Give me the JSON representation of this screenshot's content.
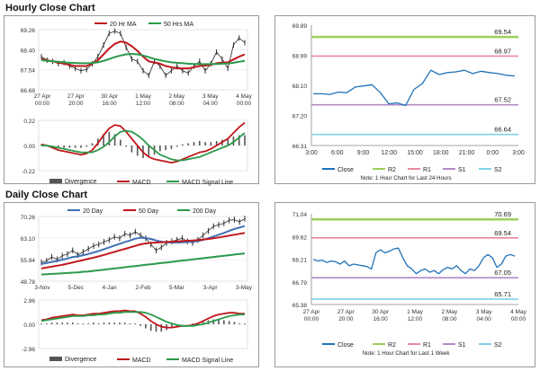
{
  "sections": {
    "hourly_title": "Hourly Close Chart",
    "daily_title": "Daily Close Chart"
  },
  "colors": {
    "price": "#2b2b2b",
    "ma20": "#c0171c",
    "ma50": "#2a9a4a",
    "day20": "#3f6fb3",
    "day200": "#2a9a4a",
    "macd": "#c0171c",
    "signal": "#2a9a4a",
    "divergence": "#555555",
    "close": "#1f72b8",
    "r2": "#9ccf5a",
    "r1": "#e8889c",
    "s1": "#b28ac6",
    "s2": "#7fd3e6"
  },
  "chart_data": [
    {
      "id": "hourly_price",
      "type": "line",
      "legend": [
        "20 Hr MA",
        "50 Hrs MA"
      ],
      "y_ticks": [
        "69.26",
        "68.40",
        "67.54",
        "66.68"
      ],
      "ylim": [
        66.68,
        69.26
      ],
      "x_ticks": [
        [
          "27 Apr",
          "00:00"
        ],
        [
          "27 Apr",
          "20:00"
        ],
        [
          "30 Apr",
          "16:00"
        ],
        [
          "1 May",
          "12:00"
        ],
        [
          "2 May",
          "08:00"
        ],
        [
          "3 May",
          "04:00"
        ],
        [
          "4 May",
          "00:00"
        ]
      ],
      "series": [
        {
          "name": "Price",
          "values": [
            68.1,
            67.95,
            67.9,
            67.8,
            67.85,
            67.7,
            67.6,
            67.5,
            67.55,
            67.8,
            68.1,
            68.6,
            69.1,
            69.2,
            69.1,
            68.5,
            68.0,
            67.9,
            67.5,
            67.3,
            67.9,
            67.7,
            67.3,
            67.5,
            67.7,
            67.5,
            67.4,
            67.7,
            67.9,
            67.5,
            67.8,
            68.3,
            68.0,
            67.6,
            68.6,
            68.9,
            68.7
          ]
        },
        {
          "name": "20 Hr MA",
          "values": [
            68.0,
            67.95,
            67.9,
            67.85,
            67.8,
            67.75,
            67.7,
            67.7,
            67.7,
            67.8,
            67.95,
            68.2,
            68.45,
            68.65,
            68.75,
            68.7,
            68.55,
            68.35,
            68.1,
            67.9,
            67.85,
            67.8,
            67.7,
            67.65,
            67.6,
            67.6,
            67.6,
            67.65,
            67.7,
            67.72,
            67.75,
            67.82,
            67.85,
            67.86,
            67.98,
            68.1,
            68.2
          ]
        },
        {
          "name": "50 Hrs MA",
          "values": [
            67.95,
            67.92,
            67.9,
            67.88,
            67.86,
            67.84,
            67.83,
            67.82,
            67.82,
            67.83,
            67.86,
            67.92,
            68.0,
            68.08,
            68.15,
            68.2,
            68.22,
            68.2,
            68.15,
            68.08,
            68.0,
            67.95,
            67.9,
            67.86,
            67.84,
            67.82,
            67.8,
            67.79,
            67.78,
            67.78,
            67.78,
            67.79,
            67.8,
            67.81,
            67.84,
            67.88,
            67.92
          ]
        }
      ]
    },
    {
      "id": "hourly_macd",
      "type": "line",
      "legend": [
        "Divergence",
        "MACD",
        "MACD Signal Line"
      ],
      "y_ticks": [
        "0.22",
        "0.00",
        "-0.22"
      ],
      "ylim": [
        -0.22,
        0.22
      ],
      "series": [
        {
          "name": "MACD",
          "values": [
            0.01,
            0.0,
            -0.02,
            -0.04,
            -0.05,
            -0.06,
            -0.07,
            -0.08,
            -0.07,
            -0.04,
            0.02,
            0.09,
            0.15,
            0.18,
            0.17,
            0.12,
            0.06,
            0.0,
            -0.06,
            -0.1,
            -0.12,
            -0.13,
            -0.14,
            -0.15,
            -0.14,
            -0.12,
            -0.1,
            -0.08,
            -0.06,
            -0.05,
            -0.03,
            0.0,
            0.03,
            0.06,
            0.11,
            0.16,
            0.2
          ]
        },
        {
          "name": "MACD Signal Line",
          "values": [
            0.0,
            0.0,
            -0.01,
            -0.02,
            -0.03,
            -0.04,
            -0.05,
            -0.06,
            -0.06,
            -0.06,
            -0.04,
            -0.01,
            0.03,
            0.08,
            0.12,
            0.13,
            0.12,
            0.09,
            0.05,
            0.0,
            -0.04,
            -0.08,
            -0.1,
            -0.12,
            -0.13,
            -0.13,
            -0.12,
            -0.11,
            -0.1,
            -0.08,
            -0.06,
            -0.04,
            -0.02,
            0.0,
            0.03,
            0.07,
            0.11
          ]
        }
      ]
    },
    {
      "id": "hourly_close",
      "type": "line",
      "legend": [
        "Close",
        "R2",
        "R1",
        "S1",
        "S2"
      ],
      "y_ticks": [
        "69.89",
        "68.99",
        "68.10",
        "67.20",
        "66.31"
      ],
      "ylim": [
        66.31,
        69.89
      ],
      "x_ticks": [
        "3:00",
        "6:00",
        "9:00",
        "12:00",
        "15:00",
        "18:00",
        "21:00",
        "0:00",
        "3:00"
      ],
      "note": "Note: 1 Hour Chart for Last 24 Hours",
      "levels": [
        {
          "name": "R2",
          "value": 69.54,
          "label": "69.54"
        },
        {
          "name": "R1",
          "value": 68.97,
          "label": "68.97"
        },
        {
          "name": "S1",
          "value": 67.52,
          "label": "67.52"
        },
        {
          "name": "S2",
          "value": 66.64,
          "label": "66.64"
        }
      ],
      "x": [
        0,
        1,
        2,
        3,
        4,
        5,
        6,
        7,
        8,
        9,
        10,
        11,
        12,
        13,
        14,
        15,
        16,
        17,
        18,
        19,
        20,
        21,
        22,
        23,
        24
      ],
      "values": [
        67.85,
        67.85,
        67.83,
        67.9,
        67.88,
        68.05,
        68.08,
        68.12,
        67.88,
        67.55,
        67.58,
        67.5,
        67.98,
        68.15,
        68.55,
        68.42,
        68.48,
        68.5,
        68.55,
        68.45,
        68.52,
        68.48,
        68.45,
        68.4,
        68.38
      ]
    },
    {
      "id": "daily_price",
      "type": "line",
      "legend": [
        "20 Day",
        "50 Day",
        "200 Day"
      ],
      "y_ticks": [
        "70.26",
        "63.10",
        "55.94",
        "48.78"
      ],
      "ylim": [
        48.78,
        70.26
      ],
      "x_ticks": [
        "3-Nov",
        "5-Dec",
        "4-Jan",
        "2-Feb",
        "5-Mar",
        "3-Apr",
        "3-May"
      ],
      "series": [
        {
          "name": "Price",
          "values": [
            55.0,
            55.5,
            56.8,
            56.0,
            57.2,
            57.8,
            59.0,
            57.5,
            58.5,
            59.5,
            60.5,
            61.0,
            61.8,
            62.5,
            63.5,
            63.0,
            64.5,
            64.0,
            65.2,
            64.0,
            63.0,
            61.0,
            59.0,
            60.0,
            61.5,
            62.0,
            62.5,
            63.0,
            62.0,
            61.5,
            62.5,
            64.0,
            65.5,
            67.0,
            67.5,
            68.0,
            69.0,
            69.2,
            68.5,
            69.5
          ]
        },
        {
          "name": "20 Day",
          "values": [
            54.5,
            54.8,
            55.2,
            55.5,
            55.9,
            56.3,
            56.8,
            57.0,
            57.4,
            57.8,
            58.3,
            58.8,
            59.4,
            60.0,
            60.6,
            61.2,
            61.8,
            62.3,
            62.9,
            63.2,
            63.1,
            62.8,
            62.3,
            61.9,
            61.7,
            61.6,
            61.6,
            61.7,
            61.8,
            61.9,
            62.1,
            62.5,
            63.0,
            63.6,
            64.2,
            64.8,
            65.5,
            66.1,
            66.6,
            67.1
          ]
        },
        {
          "name": "50 Day",
          "values": [
            53.0,
            53.3,
            53.6,
            53.9,
            54.2,
            54.6,
            55.0,
            55.4,
            55.8,
            56.2,
            56.6,
            57.0,
            57.5,
            58.0,
            58.5,
            59.0,
            59.5,
            60.0,
            60.5,
            61.0,
            61.3,
            61.5,
            61.6,
            61.7,
            61.8,
            61.9,
            62.0,
            62.1,
            62.2,
            62.3,
            62.4,
            62.6,
            62.8,
            63.0,
            63.3,
            63.6,
            63.9,
            64.2,
            64.5,
            64.8
          ]
        },
        {
          "name": "200 Day",
          "values": [
            51.0,
            51.1,
            51.2,
            51.3,
            51.4,
            51.5,
            51.6,
            51.7,
            51.9,
            52.0,
            52.2,
            52.4,
            52.6,
            52.8,
            53.0,
            53.2,
            53.4,
            53.6,
            53.8,
            54.0,
            54.2,
            54.4,
            54.6,
            54.8,
            55.0,
            55.2,
            55.4,
            55.6,
            55.8,
            56.0,
            56.2,
            56.4,
            56.6,
            56.8,
            57.0,
            57.2,
            57.4,
            57.6,
            57.8,
            58.0
          ]
        }
      ]
    },
    {
      "id": "daily_macd",
      "type": "line",
      "legend": [
        "Divergence",
        "MACD",
        "MACD Signal Line"
      ],
      "y_ticks": [
        "2.96",
        "0.00",
        "-2.96"
      ],
      "ylim": [
        -2.96,
        2.96
      ],
      "series": [
        {
          "name": "MACD",
          "values": [
            0.5,
            0.6,
            0.8,
            0.9,
            1.0,
            1.1,
            1.2,
            1.1,
            1.1,
            1.2,
            1.3,
            1.3,
            1.4,
            1.5,
            1.6,
            1.6,
            1.7,
            1.6,
            1.6,
            1.3,
            0.9,
            0.4,
            0.0,
            -0.3,
            -0.4,
            -0.4,
            -0.3,
            -0.2,
            -0.2,
            -0.1,
            0.1,
            0.4,
            0.7,
            1.0,
            1.2,
            1.3,
            1.4,
            1.4,
            1.3,
            1.3
          ]
        },
        {
          "name": "MACD Signal Line",
          "values": [
            0.4,
            0.5,
            0.6,
            0.7,
            0.8,
            0.9,
            1.0,
            1.0,
            1.0,
            1.1,
            1.1,
            1.2,
            1.2,
            1.3,
            1.4,
            1.4,
            1.5,
            1.5,
            1.5,
            1.5,
            1.4,
            1.2,
            0.9,
            0.6,
            0.3,
            0.1,
            -0.1,
            -0.2,
            -0.2,
            -0.2,
            -0.1,
            0.0,
            0.2,
            0.4,
            0.6,
            0.8,
            1.0,
            1.1,
            1.2,
            1.2
          ]
        }
      ]
    },
    {
      "id": "daily_close",
      "type": "line",
      "legend": [
        "Close",
        "R2",
        "R1",
        "S1",
        "S2"
      ],
      "y_ticks": [
        "71.04",
        "69.62",
        "68.21",
        "66.79",
        "65.38"
      ],
      "ylim": [
        65.38,
        71.04
      ],
      "x_ticks": [
        [
          "27 Apr",
          "00:00"
        ],
        [
          "27 Apr",
          "20:00"
        ],
        [
          "30 Apr",
          "16:00"
        ],
        [
          "1 May",
          "12:00"
        ],
        [
          "2 May",
          "08:00"
        ],
        [
          "3 May",
          "04:00"
        ],
        [
          "4 May",
          "00:00"
        ]
      ],
      "note": "Note: 1 Hour Chart for Last 1 Week",
      "levels": [
        {
          "name": "R2",
          "value": 70.69,
          "label": "70.69"
        },
        {
          "name": "R1",
          "value": 69.54,
          "label": "69.54"
        },
        {
          "name": "S1",
          "value": 67.05,
          "label": "67.05"
        },
        {
          "name": "S2",
          "value": 65.71,
          "label": "65.71"
        }
      ],
      "values": [
        68.2,
        68.1,
        68.15,
        68.0,
        68.1,
        68.05,
        67.9,
        68.1,
        67.8,
        67.9,
        67.85,
        67.8,
        67.75,
        67.6,
        68.6,
        68.8,
        68.6,
        68.7,
        68.85,
        68.9,
        68.3,
        67.8,
        67.6,
        67.3,
        67.5,
        67.6,
        67.4,
        67.5,
        67.3,
        67.55,
        67.7,
        67.6,
        67.8,
        67.5,
        67.3,
        67.6,
        67.5,
        67.8,
        68.3,
        68.5,
        68.3,
        67.7,
        67.9,
        68.4,
        68.5,
        68.4
      ]
    }
  ]
}
